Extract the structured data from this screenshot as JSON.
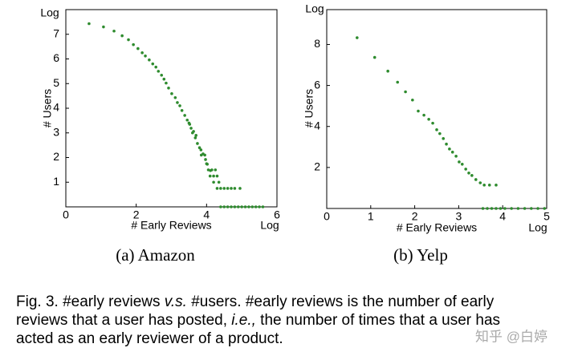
{
  "chart_data": [
    {
      "type": "scatter",
      "subtitle": "(a) Amazon",
      "x_label": "# Early Reviews",
      "y_label": "# Users",
      "x_unit": "Log",
      "y_unit": "Log",
      "color": "#2e8b2e",
      "x": [
        0.66,
        1.07,
        1.37,
        1.6,
        1.78,
        1.92,
        2.05,
        2.17,
        2.26,
        2.37,
        2.47,
        2.56,
        2.63,
        2.72,
        2.79,
        2.85,
        2.92,
        3.01,
        3.11,
        3.17,
        3.24,
        3.3,
        3.38,
        3.45,
        3.52,
        3.56,
        3.63,
        3.68,
        3.74,
        3.84,
        3.9,
        3.97,
        4.02,
        4.11,
        3.5,
        3.6,
        3.7,
        3.8,
        3.85,
        3.95,
        4.0,
        4.05,
        4.15,
        4.25,
        4.1,
        4.2,
        4.3,
        4.2,
        4.35,
        4.3,
        4.4,
        4.5,
        4.6,
        4.7,
        4.8,
        4.95,
        4.4,
        4.5,
        4.6,
        4.7,
        4.8,
        4.9,
        5.0,
        5.1,
        5.2,
        5.3,
        5.4,
        5.5,
        5.6
      ],
      "values": [
        7.43,
        7.3,
        7.13,
        6.94,
        6.78,
        6.58,
        6.42,
        6.25,
        6.12,
        5.96,
        5.8,
        5.67,
        5.5,
        5.34,
        5.18,
        5.02,
        4.82,
        4.59,
        4.43,
        4.23,
        4.1,
        3.91,
        3.71,
        3.52,
        3.35,
        3.19,
        3.06,
        2.8,
        2.57,
        2.31,
        2.15,
        1.92,
        1.73,
        1.47,
        3.4,
        3.0,
        2.9,
        2.4,
        2.1,
        2.1,
        1.75,
        1.5,
        1.5,
        1.5,
        1.25,
        1.25,
        1.25,
        1.0,
        1.0,
        0.75,
        0.75,
        0.75,
        0.75,
        0.75,
        0.75,
        0.75,
        0,
        0,
        0,
        0,
        0,
        0,
        0,
        0,
        0,
        0,
        0,
        0,
        0
      ],
      "xlim": [
        0,
        6
      ],
      "xticks": [
        0,
        2,
        4,
        6
      ],
      "ylim": [
        0,
        8
      ],
      "yticks": [
        1,
        2,
        3,
        4,
        5,
        6,
        7
      ]
    },
    {
      "type": "scatter",
      "subtitle": "(b) Yelp",
      "x_label": "# Early Reviews",
      "y_label": "# Users",
      "x_unit": "Log",
      "y_unit": "Log",
      "color": "#2e8b2e",
      "x": [
        0.69,
        1.09,
        1.39,
        1.61,
        1.79,
        1.95,
        2.08,
        2.21,
        2.32,
        2.41,
        2.5,
        2.57,
        2.65,
        2.72,
        2.79,
        2.86,
        2.94,
        3.01,
        3.08,
        3.16,
        3.23,
        3.3,
        3.39,
        3.49,
        3.58,
        3.7,
        3.85,
        3.55,
        3.65,
        3.75,
        3.85,
        3.95,
        4.05,
        4.2,
        4.35,
        4.5,
        4.65,
        4.8,
        4.95
      ],
      "values": [
        8.33,
        7.37,
        6.7,
        6.16,
        5.69,
        5.29,
        4.75,
        4.55,
        4.35,
        4.16,
        3.84,
        3.65,
        3.41,
        3.14,
        2.9,
        2.75,
        2.55,
        2.27,
        2.16,
        1.92,
        1.73,
        1.61,
        1.41,
        1.25,
        1.14,
        1.14,
        1.14,
        0,
        0,
        0,
        0,
        0,
        0,
        0,
        0,
        0,
        0,
        0,
        0
      ],
      "xlim": [
        0,
        5
      ],
      "xticks": [
        0,
        1,
        2,
        3,
        4,
        5
      ],
      "ylim": [
        0,
        9.7
      ],
      "yticks": [
        2,
        4,
        6,
        8
      ]
    }
  ],
  "caption": {
    "lines": [
      [
        {
          "text": "Fig. 3. #early reviews "
        },
        {
          "text": "v.s.",
          "italic": true
        },
        {
          "text": " #users. #early reviews is the number of early"
        }
      ],
      [
        {
          "text": "reviews that a user has posted, "
        },
        {
          "text": "i.e.,",
          "italic": true
        },
        {
          "text": " the number of times that a user has"
        }
      ],
      [
        {
          "text": "acted as an early reviewer of a product."
        }
      ]
    ]
  },
  "watermark": "知乎 @白婷"
}
